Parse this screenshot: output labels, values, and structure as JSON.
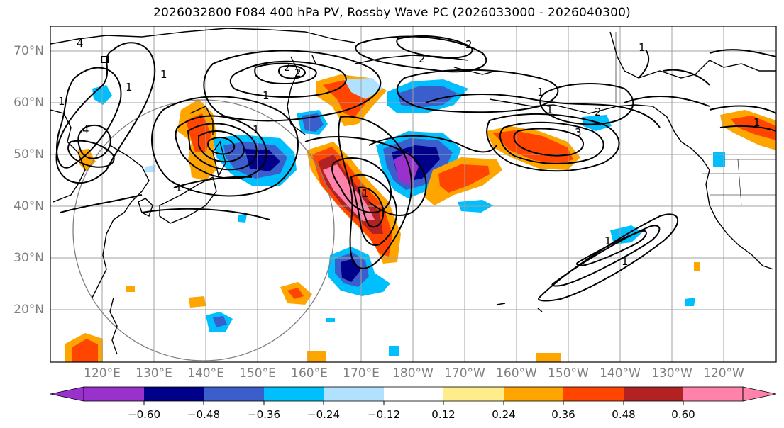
{
  "title": "2026032800 F084 400 hPa PV, Rossby Wave PC (2026033000 - 2026040300)",
  "map": {
    "lat_labels": [
      "70°N",
      "60°N",
      "50°N",
      "40°N",
      "30°N",
      "20°N"
    ],
    "lon_labels": [
      "120°E",
      "130°E",
      "140°E",
      "150°E",
      "160°E",
      "170°E",
      "180°W",
      "170°W",
      "160°W",
      "150°W",
      "140°W",
      "130°W",
      "120°W"
    ],
    "contour_labels": [
      "4",
      "1",
      "1",
      "2",
      "2",
      "2",
      "1",
      "1",
      "1",
      "4",
      "1",
      "1",
      "1",
      "3",
      "2",
      "2",
      "1",
      "1",
      "1",
      "1",
      "1"
    ]
  },
  "colorbar": {
    "ticks": [
      "−0.60",
      "−0.48",
      "−0.36",
      "−0.24",
      "−0.12",
      "0.12",
      "0.24",
      "0.36",
      "0.48",
      "0.60"
    ],
    "colors": [
      "#9932cc",
      "#00008b",
      "#3a5fcd",
      "#00bfff",
      "#b0e2ff",
      "#ffffff",
      "#ffec8b",
      "#ffa500",
      "#ff4500",
      "#b22222",
      "#ff82ab"
    ]
  }
}
